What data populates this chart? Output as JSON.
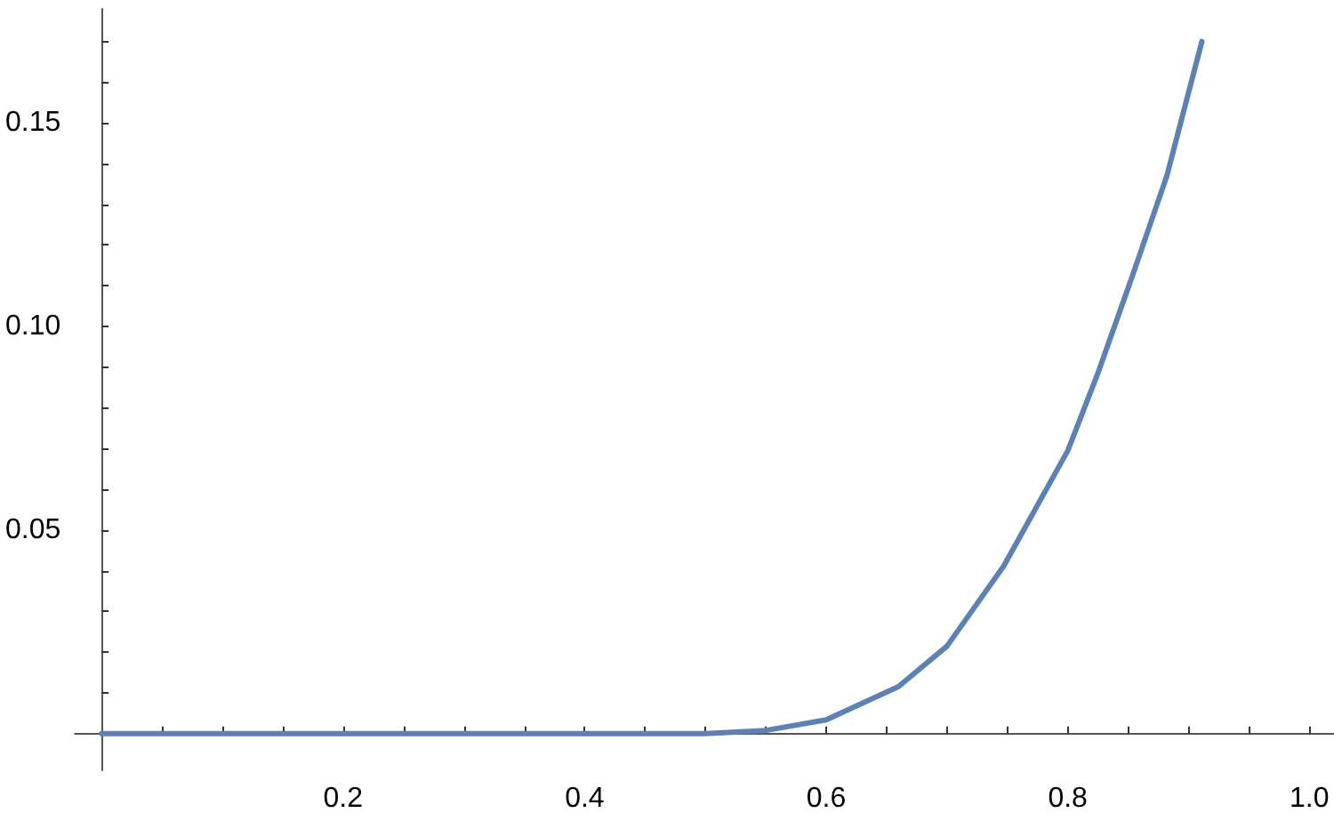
{
  "chart_data": {
    "type": "line",
    "x": [
      0,
      0.1,
      0.2,
      0.3,
      0.4,
      0.5,
      0.55,
      0.6,
      0.66,
      0.7,
      0.747,
      0.8,
      0.824,
      0.853,
      0.882,
      0.911
    ],
    "series": [
      {
        "color": "#5e81b5",
        "values": [
          0,
          0,
          0,
          0,
          0,
          0,
          0.0008,
          0.0034,
          0.0116,
          0.0215,
          0.0412,
          0.0695,
          0.0878,
          0.112,
          0.137,
          0.17
        ]
      }
    ],
    "xlim": [
      -0.022,
      1.02
    ],
    "ylim": [
      -0.009,
      0.178
    ],
    "xticks": [
      {
        "value": 0.05,
        "label": null
      },
      {
        "value": 0.1,
        "label": null
      },
      {
        "value": 0.15,
        "label": null
      },
      0.2,
      {
        "value": 0.25,
        "label": null
      },
      {
        "value": 0.3,
        "label": null
      },
      {
        "value": 0.35,
        "label": null
      },
      0.4,
      {
        "value": 0.45,
        "label": null
      },
      {
        "value": 0.5,
        "label": null
      },
      {
        "value": 0.55,
        "label": null
      },
      0.6,
      {
        "value": 0.65,
        "label": null
      },
      {
        "value": 0.7,
        "label": null
      },
      {
        "value": 0.75,
        "label": null
      },
      0.8,
      {
        "value": 0.85,
        "label": null
      },
      {
        "value": 0.9,
        "label": null
      },
      {
        "value": 0.95,
        "label": null
      },
      {
        "value": 1,
        "label": "1.0"
      }
    ],
    "yticks": [
      {
        "value": 0.01,
        "label": null
      },
      {
        "value": 0.02,
        "label": null
      },
      {
        "value": 0.03,
        "label": null
      },
      {
        "value": 0.04,
        "label": null
      },
      0.05,
      {
        "value": 0.06,
        "label": null
      },
      {
        "value": 0.07,
        "label": null
      },
      {
        "value": 0.08,
        "label": null
      },
      {
        "value": 0.09,
        "label": null
      },
      {
        "value": 0.1,
        "label": "0.10"
      },
      {
        "value": 0.11,
        "label": null
      },
      {
        "value": 0.12,
        "label": null
      },
      {
        "value": 0.13,
        "label": null
      },
      {
        "value": 0.14,
        "label": null
      },
      0.15,
      {
        "value": 0.16,
        "label": null
      },
      {
        "value": 0.17,
        "label": null
      }
    ],
    "grid": false,
    "marker": "none",
    "line_style": "solid"
  }
}
